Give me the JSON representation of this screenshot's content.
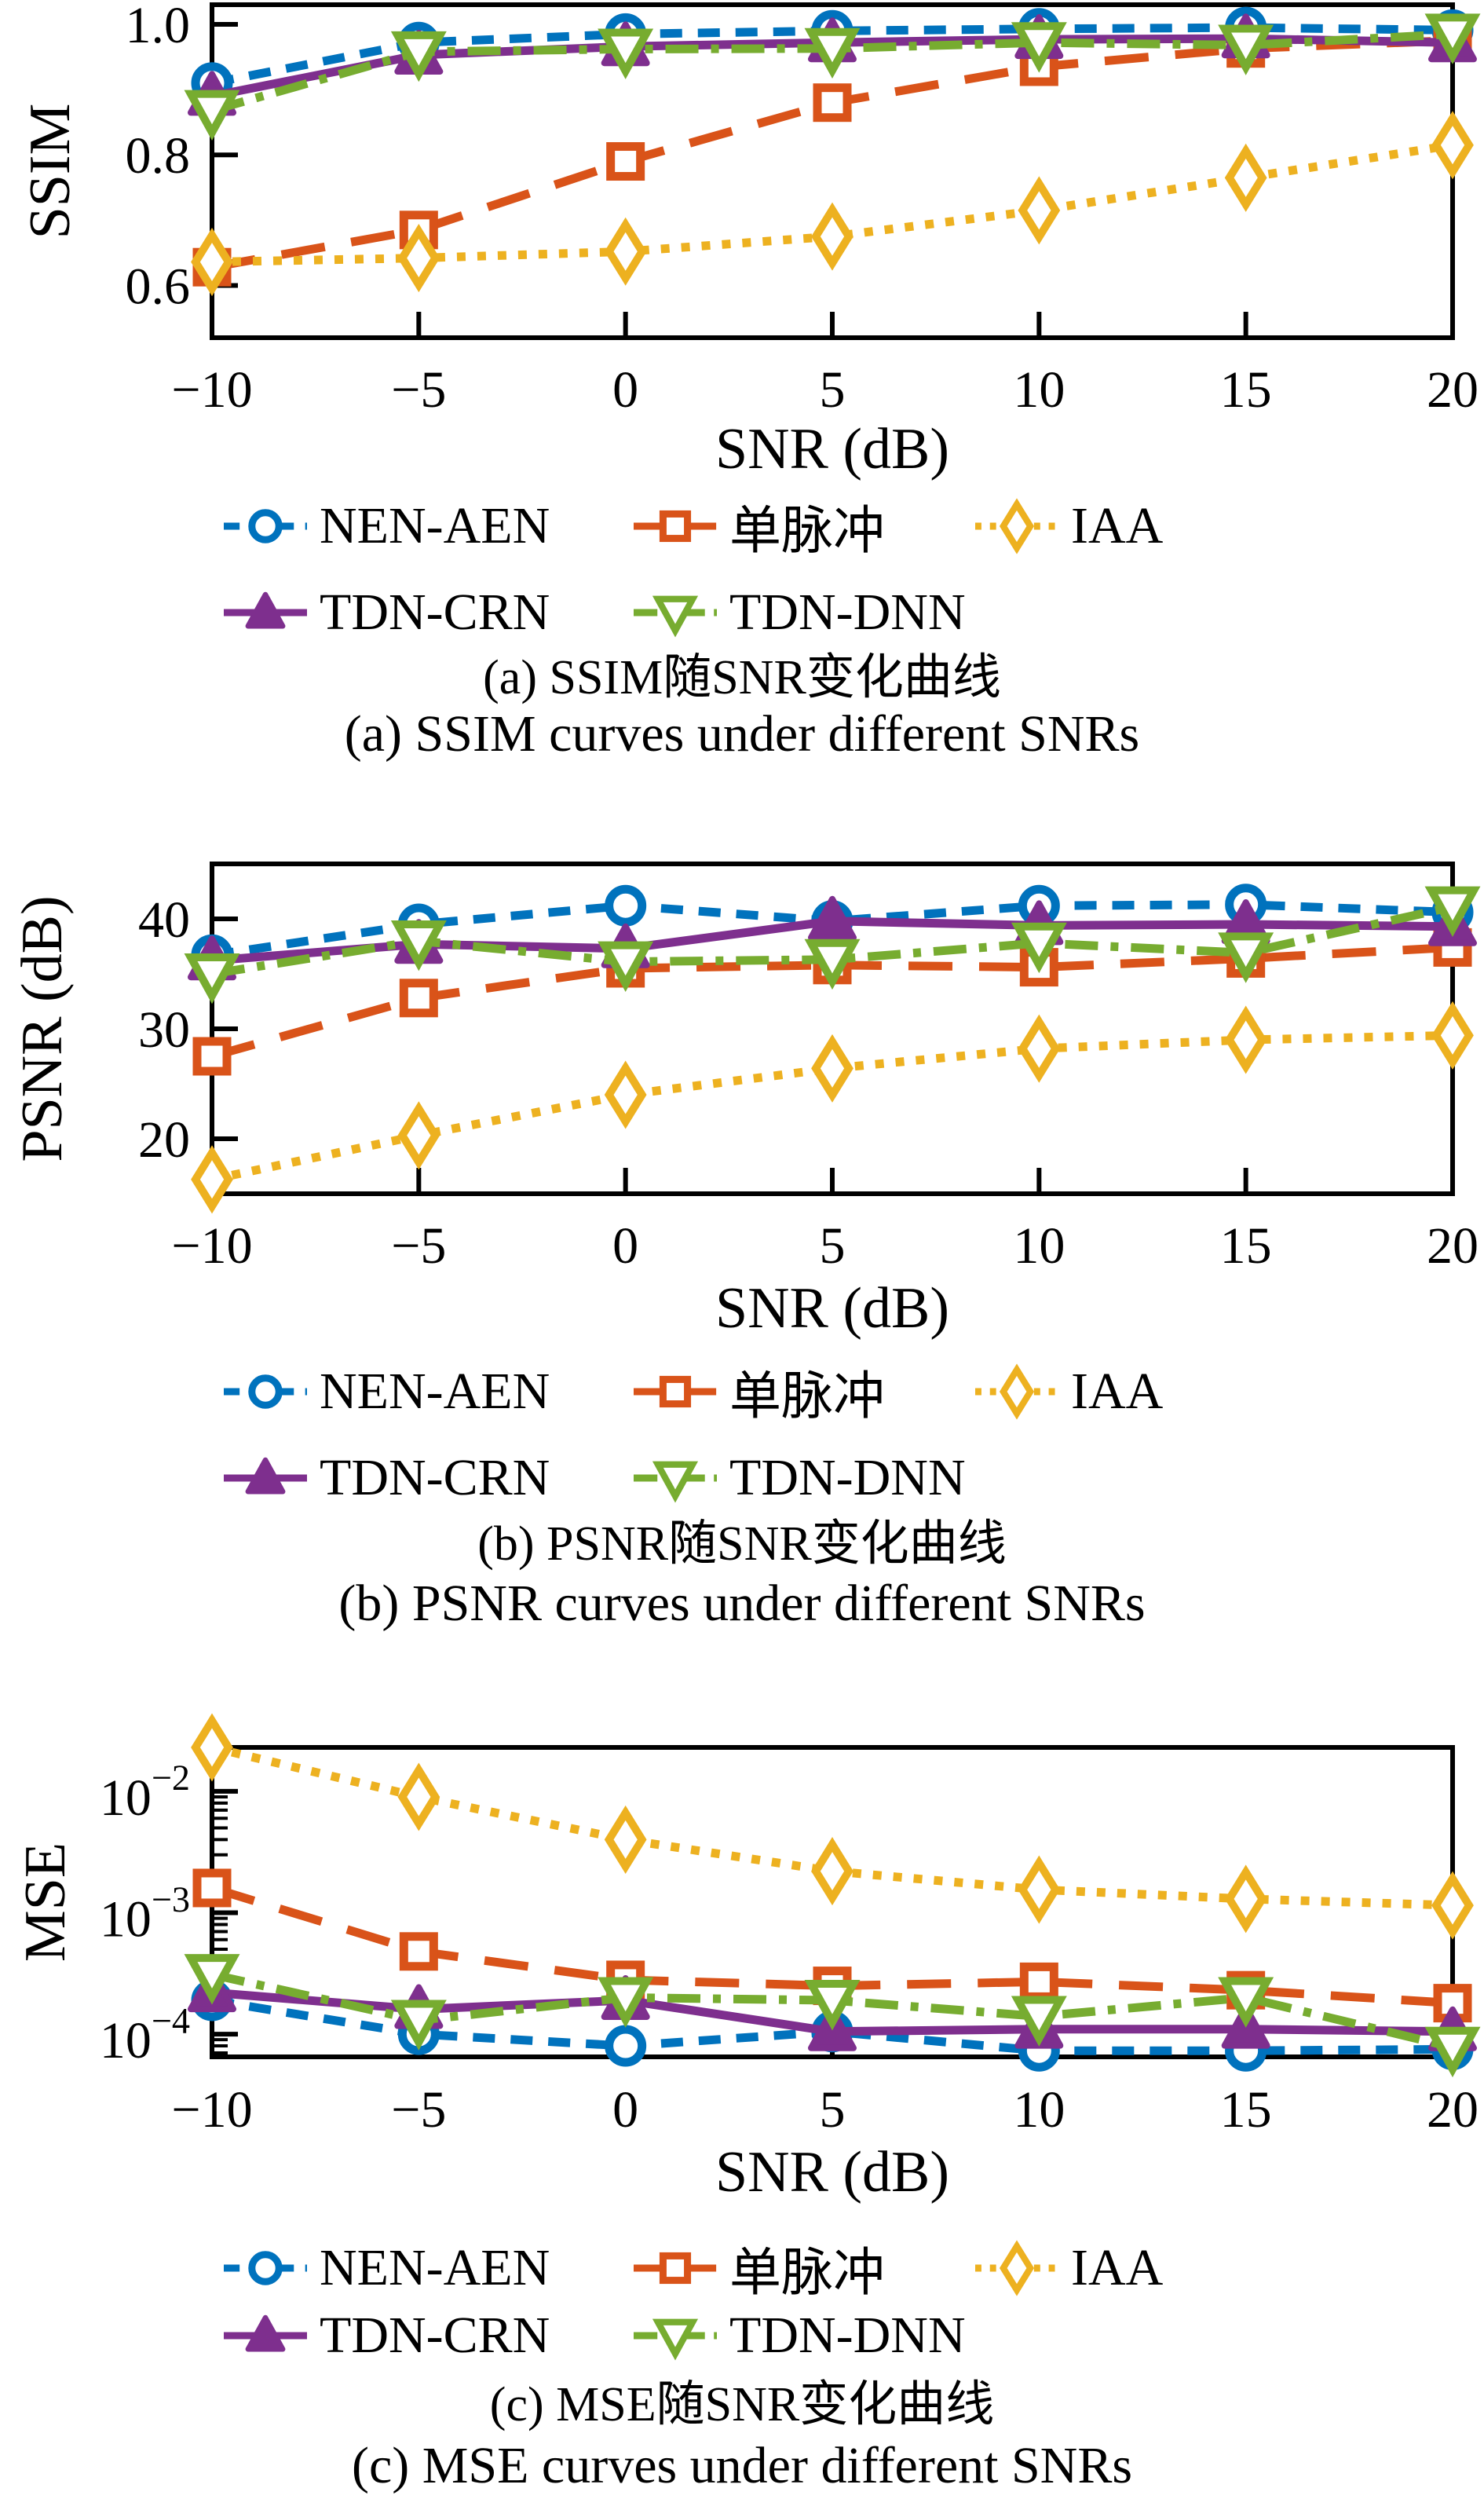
{
  "page": {
    "background": "#ffffff",
    "text_color": "#000000"
  },
  "legend": {
    "items": [
      {
        "label": "NEN-AEN",
        "color": "#0072BD",
        "marker": "circle",
        "linestyle": "dashed-short"
      },
      {
        "label": "单脉冲",
        "color": "#D95319",
        "marker": "square",
        "linestyle": "dashed-long"
      },
      {
        "label": "IAA",
        "color": "#EDB120",
        "marker": "diamond",
        "linestyle": "dotted"
      },
      {
        "label": "TDN-CRN",
        "color": "#7E2F8E",
        "marker": "triangle-up",
        "linestyle": "solid"
      },
      {
        "label": "TDN-DNN",
        "color": "#77AC30",
        "marker": "triangle-down",
        "linestyle": "dash-dot"
      }
    ]
  },
  "chart_data": [
    {
      "type": "line",
      "title_zh": "(a) SSIM随SNR变化曲线",
      "title_en": "(a) SSIM curves under different SNRs",
      "xlabel": "SNR (dB)",
      "ylabel": "SSIM",
      "x": [
        -10,
        -5,
        0,
        5,
        10,
        15,
        20
      ],
      "xtick_labels": [
        "−10",
        "−5",
        "0",
        "5",
        "10",
        "15",
        "20"
      ],
      "xlim": [
        -10,
        20
      ],
      "yscale": "linear",
      "ylim": [
        0.52,
        1.03
      ],
      "yticks": [
        {
          "value": 1.0,
          "label": "1.0"
        },
        {
          "value": 0.8,
          "label": "0.8"
        },
        {
          "value": 0.6,
          "label": "0.6"
        }
      ],
      "grid": false,
      "legend_position": "below",
      "series": [
        {
          "name": "NEN-AEN",
          "values": [
            0.91,
            0.972,
            0.985,
            0.99,
            0.993,
            0.995,
            0.991
          ]
        },
        {
          "name": "单脉冲",
          "values": [
            0.628,
            0.685,
            0.79,
            0.88,
            0.935,
            0.963,
            0.975
          ]
        },
        {
          "name": "IAA",
          "values": [
            0.636,
            0.642,
            0.652,
            0.675,
            0.715,
            0.765,
            0.815
          ]
        },
        {
          "name": "TDN-CRN",
          "values": [
            0.89,
            0.953,
            0.966,
            0.972,
            0.977,
            0.978,
            0.972
          ]
        },
        {
          "name": "TDN-DNN",
          "values": [
            0.868,
            0.958,
            0.962,
            0.963,
            0.972,
            0.968,
            0.985
          ]
        }
      ]
    },
    {
      "type": "line",
      "title_zh": "(b) PSNR随SNR变化曲线",
      "title_en": "(b) PSNR curves under different SNRs",
      "xlabel": "SNR (dB)",
      "ylabel": "PSNR (dB)",
      "x": [
        -10,
        -5,
        0,
        5,
        10,
        15,
        20
      ],
      "xtick_labels": [
        "−10",
        "−5",
        "0",
        "5",
        "10",
        "15",
        "20"
      ],
      "xlim": [
        -10,
        20
      ],
      "yscale": "linear",
      "ylim": [
        15,
        45
      ],
      "yticks": [
        {
          "value": 40,
          "label": "40"
        },
        {
          "value": 30,
          "label": "30"
        },
        {
          "value": 20,
          "label": "20"
        }
      ],
      "grid": false,
      "legend_position": "below",
      "series": [
        {
          "name": "NEN-AEN",
          "values": [
            36.7,
            39.5,
            41.2,
            39.8,
            41.2,
            41.3,
            40.6
          ]
        },
        {
          "name": "单脉冲",
          "values": [
            27.5,
            32.8,
            35.5,
            35.8,
            35.6,
            36.4,
            37.4
          ]
        },
        {
          "name": "IAA",
          "values": [
            16.3,
            20.3,
            24.0,
            26.4,
            28.2,
            29.0,
            29.4
          ]
        },
        {
          "name": "TDN-CRN",
          "values": [
            36.2,
            37.7,
            37.3,
            39.8,
            39.4,
            39.5,
            39.3
          ]
        },
        {
          "name": "TDN-DNN",
          "values": [
            35.0,
            38.0,
            36.1,
            36.3,
            37.8,
            36.9,
            41.1
          ]
        }
      ]
    },
    {
      "type": "line",
      "title_zh": "(c) MSE随SNR变化曲线",
      "title_en": "(c) MSE curves under different SNRs",
      "xlabel": "SNR (dB)",
      "ylabel": "MSE",
      "x": [
        -10,
        -5,
        0,
        5,
        10,
        15,
        20
      ],
      "xtick_labels": [
        "−10",
        "−5",
        "0",
        "5",
        "10",
        "15",
        "20"
      ],
      "xlim": [
        -10,
        20
      ],
      "yscale": "log",
      "ylim": [
        6.5e-05,
        0.023
      ],
      "yticks": [
        {
          "value": 0.01,
          "label": "10^−2"
        },
        {
          "value": 0.001,
          "label": "10^−3"
        },
        {
          "value": 0.0001,
          "label": "10^−4"
        }
      ],
      "grid": false,
      "legend_position": "below",
      "series": [
        {
          "name": "NEN-AEN",
          "values": [
            0.00019,
            0.0001,
            8e-05,
            0.000105,
            7.3e-05,
            7.3e-05,
            7.5e-05
          ]
        },
        {
          "name": "单脉冲",
          "values": [
            0.0016,
            0.00048,
            0.00028,
            0.00025,
            0.00027,
            0.00023,
            0.00018
          ]
        },
        {
          "name": "IAA",
          "values": [
            0.023,
            0.009,
            0.004,
            0.0022,
            0.00155,
            0.0013,
            0.00115
          ]
        },
        {
          "name": "TDN-CRN",
          "values": [
            0.00022,
            0.00016,
            0.00019,
            0.000105,
            0.00011,
            0.00011,
            0.000105
          ]
        },
        {
          "name": "TDN-DNN",
          "values": [
            0.00031,
            0.00013,
            0.0002,
            0.00019,
            0.00014,
            0.0002,
            7.8e-05
          ]
        }
      ]
    }
  ]
}
